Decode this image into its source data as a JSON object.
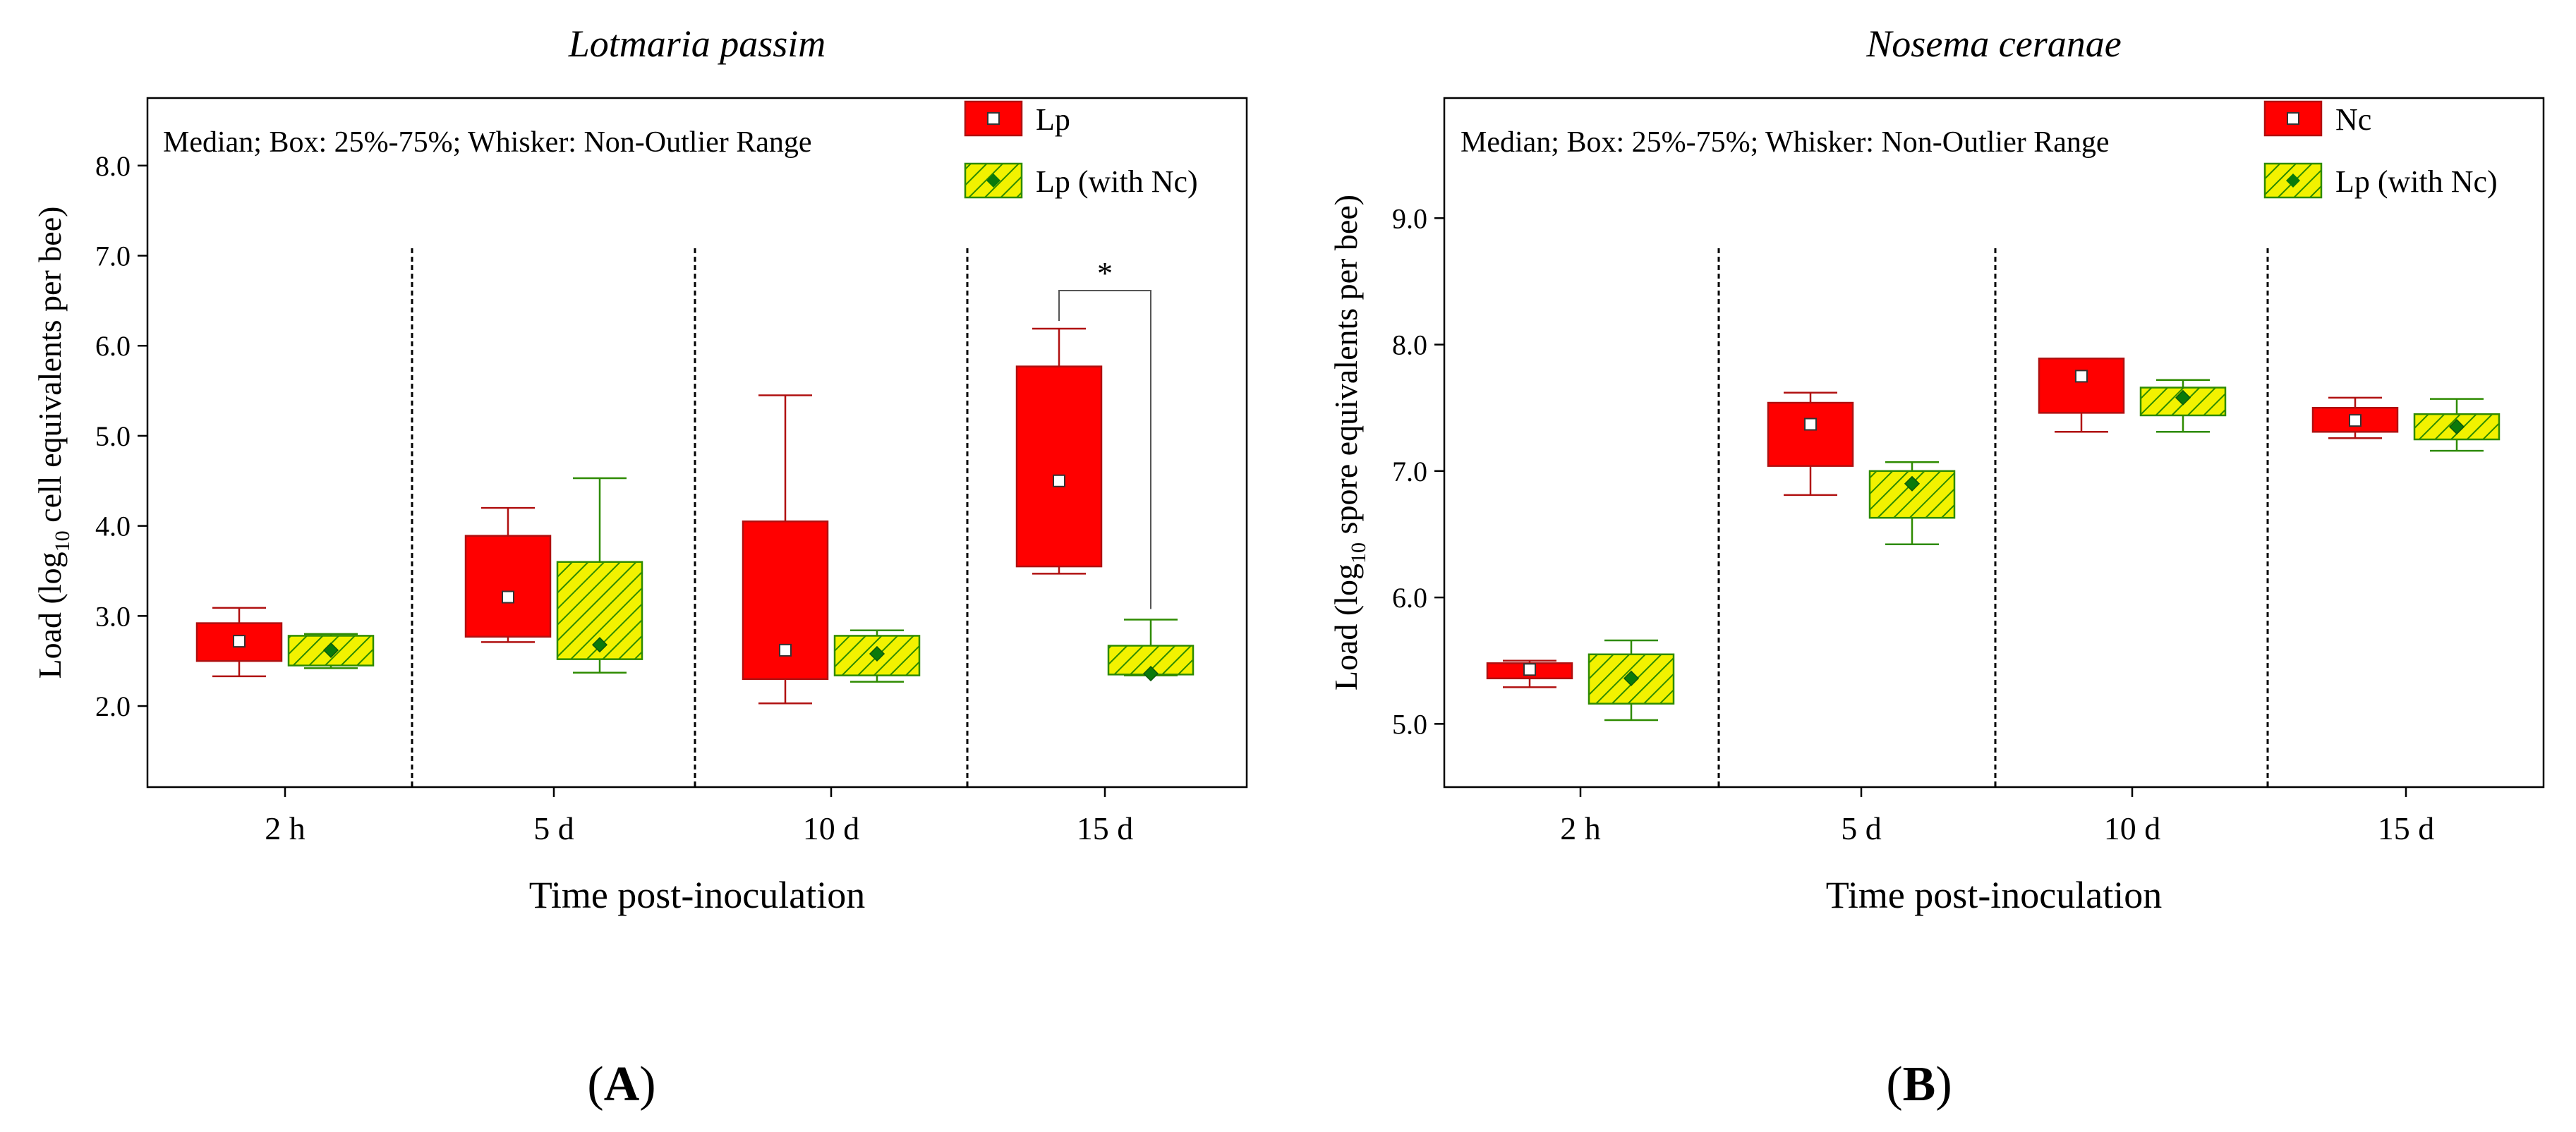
{
  "chart_data": [
    {
      "type": "box",
      "panel": "A",
      "panel_label_open": "(",
      "panel_label_letter": "A",
      "panel_label_close": ")",
      "title": "Lotmaria passim",
      "xlabel": "Time post-inoculation",
      "ylabel_pre": "Load (log",
      "ylabel_sub": "10",
      "ylabel_post": " cell equivalents per bee)",
      "ylim": [
        1.1,
        8.75
      ],
      "yticks": [
        "2.0",
        "3.0",
        "4.0",
        "5.0",
        "6.0",
        "7.0",
        "8.0"
      ],
      "categories": [
        "2 h",
        "5 d",
        "10 d",
        "15 d"
      ],
      "note": "Median; Box: 25%-75%; Whisker: Non-Outlier Range",
      "legend": [
        "Lp",
        "Lp (with Nc)"
      ],
      "series": [
        {
          "name": "Lp",
          "style": "red-solid",
          "boxes": [
            {
              "median": 2.72,
              "q1": 2.5,
              "q3": 2.92,
              "min": 2.33,
              "max": 3.09
            },
            {
              "median": 3.21,
              "q1": 2.77,
              "q3": 3.89,
              "min": 2.71,
              "max": 4.2
            },
            {
              "median": 2.62,
              "q1": 2.3,
              "q3": 4.05,
              "min": 2.03,
              "max": 5.45
            },
            {
              "median": 4.5,
              "q1": 3.55,
              "q3": 5.77,
              "min": 3.47,
              "max": 6.19
            }
          ]
        },
        {
          "name": "Lp (with Nc)",
          "style": "yellow-hatched",
          "boxes": [
            {
              "median": 2.62,
              "q1": 2.45,
              "q3": 2.78,
              "min": 2.42,
              "max": 2.8
            },
            {
              "median": 2.68,
              "q1": 2.52,
              "q3": 3.6,
              "min": 2.37,
              "max": 4.53
            },
            {
              "median": 2.58,
              "q1": 2.34,
              "q3": 2.78,
              "min": 2.27,
              "max": 2.84
            },
            {
              "median": 2.36,
              "q1": 2.35,
              "q3": 2.67,
              "min": 2.34,
              "max": 2.96
            }
          ]
        }
      ],
      "annotations": [
        {
          "text": "*",
          "category": "15 d"
        }
      ]
    },
    {
      "type": "box",
      "panel": "B",
      "panel_label_open": "(",
      "panel_label_letter": "B",
      "panel_label_close": ")",
      "title": "Nosema ceranae",
      "xlabel": "Time post-inoculation",
      "ylabel_pre": "Load (log",
      "ylabel_sub": "10",
      "ylabel_post": " spore equivalents per bee)",
      "ylim": [
        4.5,
        9.95
      ],
      "yticks": [
        "5.0",
        "6.0",
        "7.0",
        "8.0",
        "9.0"
      ],
      "categories": [
        "2 h",
        "5 d",
        "10 d",
        "15 d"
      ],
      "note": "Median; Box: 25%-75%; Whisker: Non-Outlier Range",
      "legend": [
        "Nc",
        "Lp (with Nc)"
      ],
      "series": [
        {
          "name": "Nc",
          "style": "red-solid",
          "boxes": [
            {
              "median": 5.43,
              "q1": 5.36,
              "q3": 5.48,
              "min": 5.29,
              "max": 5.5
            },
            {
              "median": 7.37,
              "q1": 7.04,
              "q3": 7.54,
              "min": 6.81,
              "max": 7.62
            },
            {
              "median": 7.75,
              "q1": 7.46,
              "q3": 7.89,
              "min": 7.31,
              "max": 7.89
            },
            {
              "median": 7.4,
              "q1": 7.31,
              "q3": 7.5,
              "min": 7.26,
              "max": 7.58
            }
          ]
        },
        {
          "name": "Lp (with Nc)",
          "style": "yellow-hatched",
          "boxes": [
            {
              "median": 5.36,
              "q1": 5.16,
              "q3": 5.55,
              "min": 5.03,
              "max": 5.66
            },
            {
              "median": 6.9,
              "q1": 6.63,
              "q3": 7.0,
              "min": 6.42,
              "max": 7.07
            },
            {
              "median": 7.58,
              "q1": 7.44,
              "q3": 7.66,
              "min": 7.31,
              "max": 7.72
            },
            {
              "median": 7.35,
              "q1": 7.25,
              "q3": 7.45,
              "min": 7.16,
              "max": 7.57
            }
          ]
        }
      ]
    }
  ]
}
